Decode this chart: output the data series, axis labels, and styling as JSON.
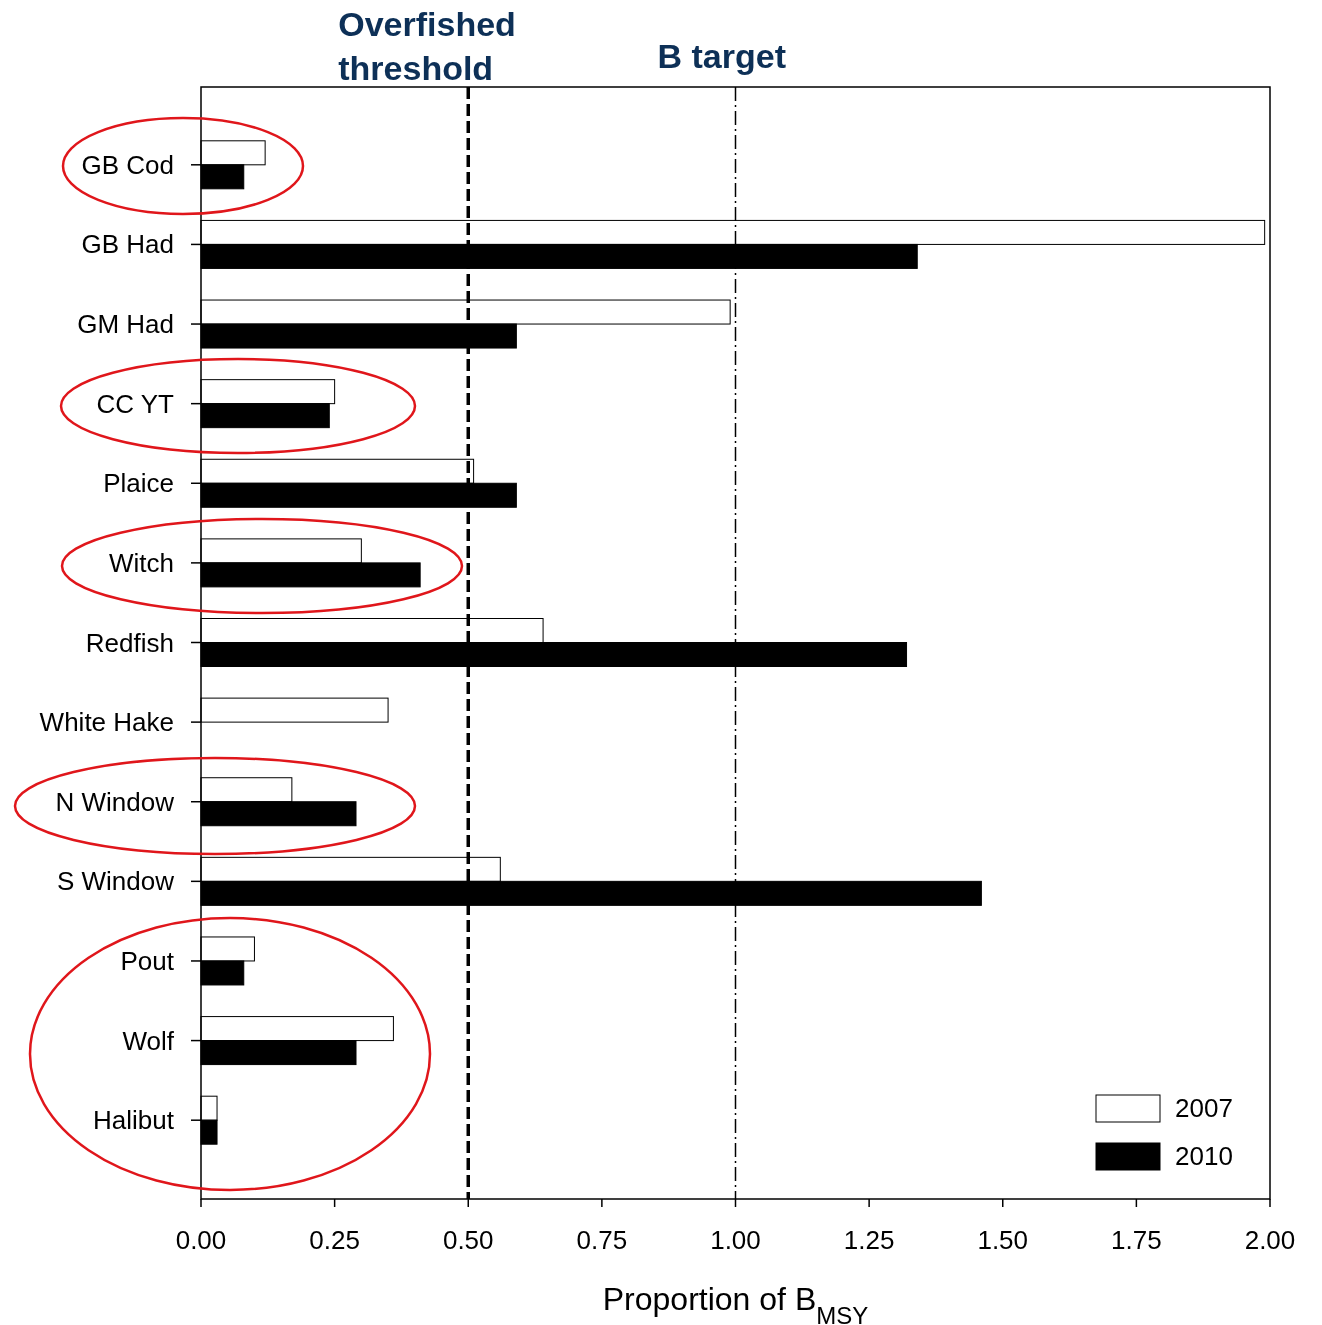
{
  "chart_data": {
    "type": "bar",
    "orientation": "horizontal",
    "xlabel": "Proportion of B$_{MSY}$",
    "categories": [
      "GB Cod",
      "GB Had",
      "GM Had",
      "CC YT",
      "Plaice",
      "Witch",
      "Redfish",
      "White Hake",
      "N Window",
      "S Window",
      "Pout",
      "Wolf",
      "Halibut"
    ],
    "series": [
      {
        "name": "2007",
        "color": "#ffffff",
        "values": [
          0.12,
          1.99,
          0.99,
          0.25,
          0.51,
          0.3,
          0.64,
          0.35,
          0.17,
          0.56,
          0.1,
          0.36,
          0.03
        ]
      },
      {
        "name": "2010",
        "color": "#000000",
        "values": [
          0.08,
          1.34,
          0.59,
          0.24,
          0.59,
          0.41,
          1.32,
          null,
          0.29,
          1.46,
          0.08,
          0.29,
          0.03
        ]
      }
    ],
    "xlim": [
      0,
      2
    ],
    "xticks": [
      {
        "value": 0,
        "label": "0.00"
      },
      {
        "value": 0.25,
        "label": "0.25"
      },
      {
        "value": 0.5,
        "label": "0.50"
      },
      {
        "value": 0.75,
        "label": "0.75"
      },
      {
        "value": 1,
        "label": "1.00"
      },
      {
        "value": 1.25,
        "label": "1.25"
      },
      {
        "value": 1.5,
        "label": "1.50"
      },
      {
        "value": 1.75,
        "label": "1.75"
      },
      {
        "value": 2,
        "label": "2.00"
      }
    ],
    "ref_lines": [
      {
        "axis": "x",
        "value": 0.5,
        "label": "Overfished threshold",
        "color": "#000000",
        "line_style": "dashed"
      },
      {
        "axis": "x",
        "value": 1,
        "label": "B target",
        "color": "#000000",
        "line_style": "dashdot"
      }
    ],
    "grid": false,
    "legend": "bottom right"
  }
}
